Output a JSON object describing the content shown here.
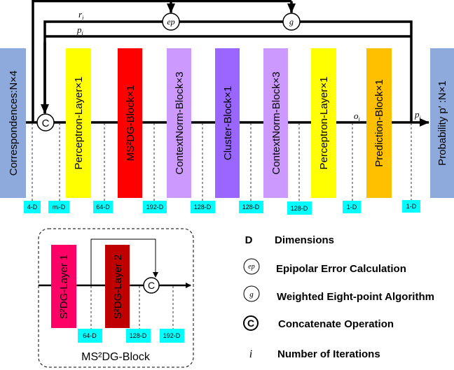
{
  "colors": {
    "input": "#8EA9DB",
    "perceptron": "#FFFF00",
    "ms2dg": "#FF0000",
    "contextnorm": "#CC99FF",
    "cluster": "#9966FF",
    "prediction": "#FFC000",
    "output": "#8EA9DB",
    "dim_label": "#00FFFF",
    "s2dg_layer1": "#FF0066",
    "s2dg_layer2": "#C00000"
  },
  "pipeline": {
    "blocks": [
      {
        "label": "Correspondences:N×4"
      },
      {
        "label": "Perceptron-Layer×1"
      },
      {
        "label": "MS²DG-Block×1"
      },
      {
        "label": "ContextNorm-Block×3"
      },
      {
        "label": "Cluster-Block×1"
      },
      {
        "label": "ContextNorm-Block×3"
      },
      {
        "label": "Perceptron-Layer×1"
      },
      {
        "label": "Prediction-Block×1"
      },
      {
        "label": "Probability p′ :N×1"
      }
    ],
    "dims": [
      "4-D",
      "mᵢ-D",
      "64-D",
      "192-D",
      "128-D",
      "128-D",
      "128-D",
      "1-D",
      "1-D"
    ],
    "nodes": {
      "ep": "ep",
      "g": "g",
      "concat": "C"
    },
    "signals": {
      "r": "r",
      "p": "p",
      "o": "o",
      "p_out": "p",
      "sub": "i"
    }
  },
  "ms2dg_block": {
    "title": "MS²DG-Block",
    "layers": [
      "S²DG-Layer 1",
      "S²DG-Layer 2"
    ],
    "dims": [
      "64-D",
      "128-D",
      "192-D"
    ],
    "concat": "C"
  },
  "legend": [
    {
      "symbol": "D",
      "text": "Dimensions"
    },
    {
      "symbol": "ep",
      "text": "Epipolar Error Calculation"
    },
    {
      "symbol": "g",
      "text": "Weighted Eight-point Algorithm"
    },
    {
      "symbol": "C",
      "text": "Concatenate Operation"
    },
    {
      "symbol": "i",
      "text": "Number of Iterations"
    }
  ]
}
